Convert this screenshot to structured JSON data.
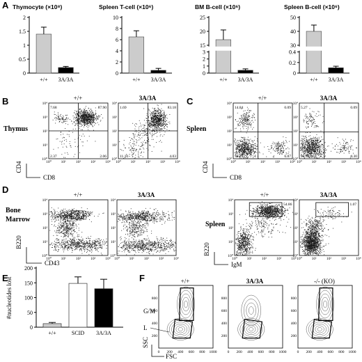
{
  "panels": {
    "A": "A",
    "B": "B",
    "C": "C",
    "D": "D",
    "E": "E",
    "F": "F"
  },
  "genotypes": {
    "wt": "+/+",
    "mut": "3A/3A",
    "scid": "SCID",
    "ko": "-/- (KO)"
  },
  "colors": {
    "wt_bar": "#cccccc",
    "mut_bar": "#000000",
    "dots": "#1a1a1a"
  },
  "chart_data": [
    {
      "type": "bar",
      "title": "Thymocyte (×10⁸)",
      "categories": [
        "+/+",
        "3A/3A"
      ],
      "values": [
        1.4,
        0.2
      ],
      "errors": [
        0.25,
        0.04
      ],
      "ylim": [
        0,
        2
      ],
      "yticks": [
        "0",
        "0.5",
        "1",
        "1.5",
        "2"
      ]
    },
    {
      "type": "bar",
      "title": "Spleen T-cell (×10⁶)",
      "categories": [
        "+/+",
        "3A/3A"
      ],
      "values": [
        6.5,
        0.5
      ],
      "errors": [
        1.1,
        0.35
      ],
      "ylim": [
        0,
        10
      ],
      "yticks": [
        "0",
        "2",
        "4",
        "6",
        "8",
        "10"
      ]
    },
    {
      "type": "bar",
      "title": "BM B-cell (×10⁶)",
      "categories": [
        "+/+",
        "3A/3A"
      ],
      "values": [
        17,
        0.4
      ],
      "errors": [
        3.5,
        0.2
      ],
      "broken_axis": true,
      "yticks_lower": [
        "0",
        "1",
        "2",
        "3"
      ],
      "yticks_upper": [
        "15",
        "20",
        "25"
      ]
    },
    {
      "type": "bar",
      "title": "Spleen B-cell (×10⁶)",
      "categories": [
        "+/+",
        "3A/3A"
      ],
      "values": [
        40,
        0.1
      ],
      "errors": [
        4.5,
        0.03
      ],
      "broken_axis": true,
      "yticks_lower": [
        "0",
        "0.2",
        "0.4"
      ],
      "yticks_upper": [
        "30",
        "40",
        "50"
      ]
    },
    {
      "type": "bar",
      "title": "",
      "ylabel": "#nucleotides lost",
      "categories": [
        "+/+",
        "SCID",
        "3A/3A"
      ],
      "values": [
        12,
        148,
        130
      ],
      "errors": [
        4,
        22,
        32
      ],
      "ylim": [
        0,
        200
      ],
      "yticks": [
        "0",
        "50",
        "100",
        "150",
        "200"
      ]
    }
  ],
  "flow": {
    "B": {
      "row_label": "Thymus",
      "x_axis": "CD8",
      "y_axis": "CD4",
      "plots": [
        {
          "genotype": "+/+",
          "ul": "7.68",
          "ur": "87.90",
          "ll": "2.37",
          "lr": "2.06"
        },
        {
          "genotype": "3A/3A",
          "ul": "1.69",
          "ur": "83.18",
          "ll": "11.10",
          "lr": "4.03"
        }
      ]
    },
    "C": {
      "row_label": "Spleen",
      "x_axis": "CD8",
      "y_axis": "CD4",
      "plots": [
        {
          "genotype": "+/+",
          "ul": "14.84",
          "ur": "0.09",
          "ll": "78.21",
          "lr": "6.87"
        },
        {
          "genotype": "3A/3A",
          "ul": "5.27",
          "ur": "0.09",
          "ll": "90.34",
          "lr": "4.30"
        }
      ]
    },
    "D_bm": {
      "row_label_1": "Bone",
      "row_label_2": "Marrow",
      "x_axis": "CD43",
      "y_axis": "B220",
      "plots": [
        {
          "genotype": "+/+",
          "gate": "2.04"
        },
        {
          "genotype": "3A/3A",
          "gate": "4.46"
        }
      ]
    },
    "D_spleen": {
      "row_label": "Spleen",
      "x_axis": "IgM",
      "y_axis": "B220",
      "plots": [
        {
          "genotype": "+/+",
          "gate": "54.86"
        },
        {
          "genotype": "3A/3A",
          "gate": "1.07"
        }
      ]
    },
    "F": {
      "x_axis": "FSC",
      "y_axis": "SSC",
      "gm_label": "G/M",
      "l_label": "L",
      "ticks": [
        "0",
        "200",
        "400",
        "600",
        "800",
        "1000"
      ],
      "yticks": [
        "200",
        "400",
        "600",
        "800"
      ],
      "plots": [
        {
          "genotype": "+/+"
        },
        {
          "genotype": "3A/3A"
        },
        {
          "genotype": "-/- (KO)"
        }
      ]
    },
    "log_ticks": [
      "10⁰",
      "10¹",
      "10²",
      "10³",
      "10⁴"
    ]
  }
}
